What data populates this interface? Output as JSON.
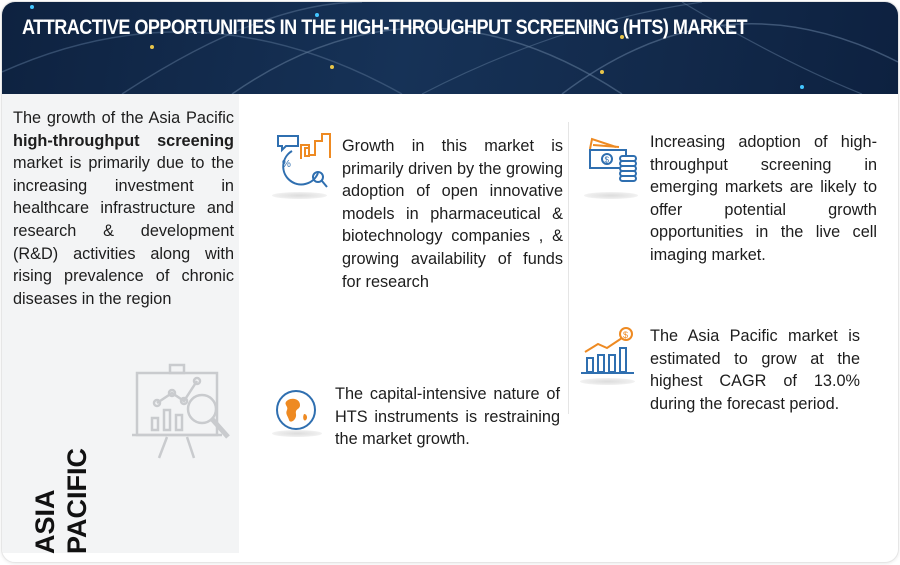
{
  "header": {
    "title": "ATTRACTIVE OPPORTUNITIES IN THE HIGH-THROUGHPUT SCREENING (HTS) MARKET"
  },
  "left_panel": {
    "text_before": "The growth of the Asia Pacific ",
    "text_bold": "high-throughput screening",
    "text_after": " market is primarily due to the increasing investment in healthcare infrastructure and research & development (R&D) activities along with rising prevalence of chronic diseases in the region",
    "region_line1": "ASIA",
    "region_line2": "PACIFIC",
    "icon": "presentation-analytics-icon"
  },
  "insights": [
    {
      "icon": "growth-chart-percent-icon",
      "text": "Growth in this market is primarily driven by the growing adoption of open innovative models in pharmaceutical & biotechnology companies , & growing availability of funds for research"
    },
    {
      "icon": "globe-icon",
      "text": "The capital-intensive nature of HTS instruments is restraining the market growth."
    },
    {
      "icon": "money-coins-icon",
      "text": "Increasing adoption of high-throughput screening in emerging markets are likely to offer potential growth opportunities in the live cell imaging market."
    },
    {
      "icon": "bar-chart-dollar-icon",
      "text": "The Asia Pacific market is estimated to grow at the highest CAGR of 13.0% during the forecast period."
    }
  ],
  "colors": {
    "header_bg": "#12294a",
    "accent_blue": "#2f6fb0",
    "accent_orange": "#ee8a22",
    "panel_bg": "#f3f4f5"
  }
}
